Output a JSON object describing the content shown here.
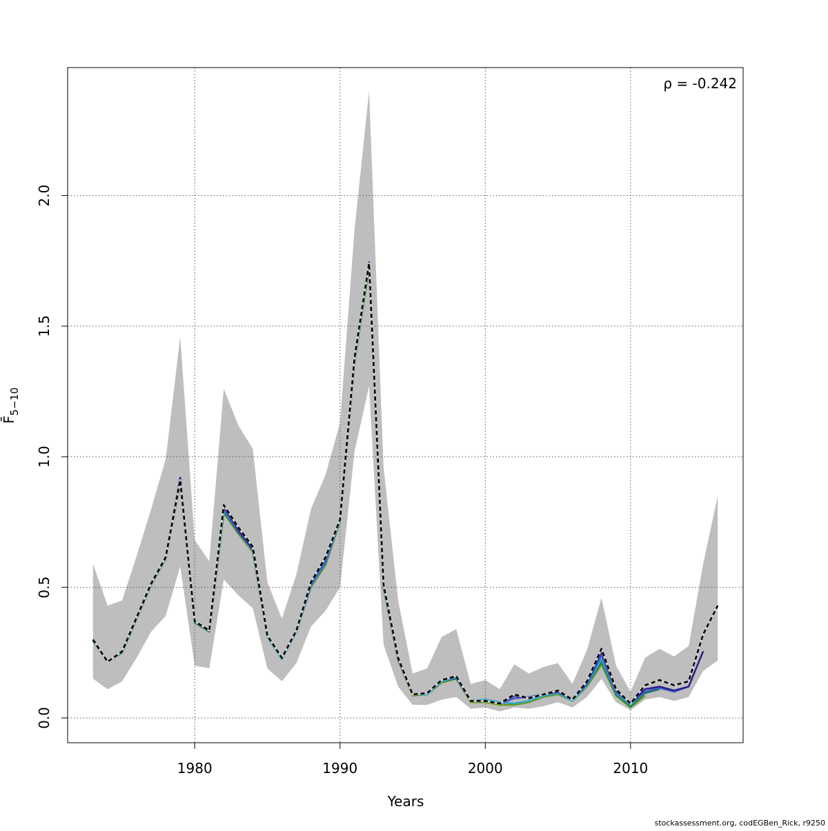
{
  "chart_data": {
    "type": "line",
    "title": "",
    "xlabel": "Years",
    "ylabel": "F̄",
    "ylabel_subscript": "5−10",
    "annotation": "ρ = -0.242",
    "footer": "stockassessment.org, codEGBen_Rick, r9250",
    "xlim": [
      1971.25,
      2017.75
    ],
    "ylim": [
      -0.095,
      2.49
    ],
    "xticks": [
      1980,
      1990,
      2000,
      2010
    ],
    "yticks": [
      0.0,
      0.5,
      1.0,
      1.5,
      2.0
    ],
    "grid": true,
    "legend": "none",
    "colors": {
      "ci_band": "#bebebe",
      "base": "#000000",
      "peels": [
        "#2a1d8a",
        "#3b5ccc",
        "#2fa8c8",
        "#1a7a4a",
        "#6a9a1e"
      ]
    },
    "years": [
      1973,
      1974,
      1975,
      1976,
      1977,
      1978,
      1979,
      1980,
      1981,
      1982,
      1983,
      1984,
      1985,
      1986,
      1987,
      1988,
      1989,
      1990,
      1991,
      1992,
      1993,
      1994,
      1995,
      1996,
      1997,
      1998,
      1999,
      2000,
      2001,
      2002,
      2003,
      2004,
      2005,
      2006,
      2007,
      2008,
      2009,
      2010,
      2011,
      2012,
      2013,
      2014,
      2015,
      2016
    ],
    "ci_lower": [
      0.15,
      0.11,
      0.14,
      0.23,
      0.33,
      0.39,
      0.58,
      0.2,
      0.19,
      0.53,
      0.47,
      0.42,
      0.19,
      0.14,
      0.21,
      0.35,
      0.41,
      0.5,
      1.02,
      1.27,
      0.28,
      0.12,
      0.05,
      0.05,
      0.07,
      0.08,
      0.035,
      0.04,
      0.025,
      0.04,
      0.035,
      0.045,
      0.06,
      0.04,
      0.08,
      0.15,
      0.06,
      0.03,
      0.07,
      0.08,
      0.065,
      0.08,
      0.18,
      0.22
    ],
    "ci_upper": [
      0.59,
      0.43,
      0.45,
      0.62,
      0.8,
      0.99,
      1.46,
      0.68,
      0.6,
      1.26,
      1.12,
      1.03,
      0.52,
      0.38,
      0.55,
      0.8,
      0.93,
      1.13,
      1.87,
      2.4,
      0.96,
      0.45,
      0.17,
      0.19,
      0.31,
      0.34,
      0.13,
      0.145,
      0.11,
      0.205,
      0.17,
      0.195,
      0.21,
      0.13,
      0.26,
      0.46,
      0.2,
      0.1,
      0.23,
      0.265,
      0.235,
      0.275,
      0.59,
      0.85
    ],
    "series": [
      {
        "x": [
          1973,
          1974,
          1975,
          1976,
          1977,
          1978,
          1979,
          1980,
          1981,
          1982,
          1983,
          1984,
          1985,
          1986,
          1987,
          1988,
          1989,
          1990,
          1991,
          1992,
          1993,
          1994,
          1995,
          1996,
          1997,
          1998,
          1999,
          2000,
          2001,
          2002,
          2003,
          2004,
          2005,
          2006,
          2007,
          2008,
          2009,
          2010,
          2011,
          2012,
          2013,
          2014,
          2015,
          2016
        ],
        "values": [
          0.3,
          0.215,
          0.255,
          0.385,
          0.515,
          0.615,
          0.91,
          0.37,
          0.335,
          0.815,
          0.73,
          0.655,
          0.315,
          0.23,
          0.335,
          0.52,
          0.615,
          0.76,
          1.38,
          1.74,
          0.51,
          0.23,
          0.09,
          0.095,
          0.145,
          0.16,
          0.065,
          0.065,
          0.055,
          0.09,
          0.075,
          0.09,
          0.105,
          0.07,
          0.14,
          0.265,
          0.11,
          0.055,
          0.125,
          0.145,
          0.125,
          0.14,
          0.32,
          0.43
        ],
        "color": "#000000",
        "dashed": true
      },
      {
        "x": [
          1973,
          1974,
          1975,
          1976,
          1977,
          1978,
          1979,
          1980,
          1981,
          1982,
          1983,
          1984,
          1985,
          1986,
          1987,
          1988,
          1989,
          1990,
          1991,
          1992,
          1993,
          1994,
          1995,
          1996,
          1997,
          1998,
          1999,
          2000,
          2001,
          2002,
          2003,
          2004,
          2005,
          2006,
          2007,
          2008,
          2009,
          2010,
          2011,
          2012,
          2013,
          2014,
          2015
        ],
        "values": [
          0.3,
          0.215,
          0.255,
          0.385,
          0.515,
          0.615,
          0.92,
          0.37,
          0.335,
          0.81,
          0.72,
          0.645,
          0.315,
          0.23,
          0.335,
          0.515,
          0.61,
          0.76,
          1.38,
          1.745,
          0.505,
          0.225,
          0.09,
          0.095,
          0.145,
          0.16,
          0.065,
          0.065,
          0.055,
          0.085,
          0.075,
          0.09,
          0.1,
          0.07,
          0.135,
          0.255,
          0.105,
          0.055,
          0.11,
          0.12,
          0.105,
          0.12,
          0.255
        ],
        "color": "#2a1d8a",
        "dashed": false
      },
      {
        "x": [
          1973,
          1974,
          1975,
          1976,
          1977,
          1978,
          1979,
          1980,
          1981,
          1982,
          1983,
          1984,
          1985,
          1986,
          1987,
          1988,
          1989,
          1990,
          1991,
          1992,
          1993,
          1994,
          1995,
          1996,
          1997,
          1998,
          1999,
          2000,
          2001,
          2002,
          2003,
          2004,
          2005,
          2006,
          2007,
          2008,
          2009,
          2010,
          2011,
          2012,
          2013,
          2014
        ],
        "values": [
          0.3,
          0.215,
          0.255,
          0.385,
          0.515,
          0.615,
          0.915,
          0.37,
          0.335,
          0.8,
          0.715,
          0.645,
          0.315,
          0.23,
          0.335,
          0.51,
          0.6,
          0.76,
          1.375,
          1.74,
          0.505,
          0.225,
          0.09,
          0.095,
          0.145,
          0.155,
          0.065,
          0.065,
          0.055,
          0.075,
          0.08,
          0.09,
          0.1,
          0.07,
          0.13,
          0.24,
          0.1,
          0.055,
          0.1,
          0.115,
          0.1,
          0.12
        ],
        "color": "#3b5ccc",
        "dashed": false
      },
      {
        "x": [
          1973,
          1974,
          1975,
          1976,
          1977,
          1978,
          1979,
          1980,
          1981,
          1982,
          1983,
          1984,
          1985,
          1986,
          1987,
          1988,
          1989,
          1990,
          1991,
          1992,
          1993,
          1994,
          1995,
          1996,
          1997,
          1998,
          1999,
          2000,
          2001,
          2002,
          2003,
          2004,
          2005,
          2006,
          2007,
          2008,
          2009,
          2010,
          2011,
          2012,
          2013
        ],
        "values": [
          0.3,
          0.215,
          0.255,
          0.385,
          0.515,
          0.615,
          0.91,
          0.37,
          0.335,
          0.795,
          0.715,
          0.64,
          0.31,
          0.225,
          0.33,
          0.505,
          0.595,
          0.755,
          1.37,
          1.735,
          0.5,
          0.225,
          0.09,
          0.09,
          0.14,
          0.155,
          0.065,
          0.07,
          0.06,
          0.055,
          0.065,
          0.085,
          0.095,
          0.065,
          0.125,
          0.225,
          0.095,
          0.05,
          0.1,
          0.115,
          0.1
        ],
        "color": "#2fa8c8",
        "dashed": false
      },
      {
        "x": [
          1973,
          1974,
          1975,
          1976,
          1977,
          1978,
          1979,
          1980,
          1981,
          1982,
          1983,
          1984,
          1985,
          1986,
          1987,
          1988,
          1989,
          1990,
          1991,
          1992,
          1993,
          1994,
          1995,
          1996,
          1997,
          1998,
          1999,
          2000,
          2001,
          2002,
          2003,
          2004,
          2005,
          2006,
          2007,
          2008,
          2009,
          2010,
          2011,
          2012
        ],
        "values": [
          0.295,
          0.215,
          0.25,
          0.38,
          0.51,
          0.61,
          0.905,
          0.365,
          0.33,
          0.79,
          0.71,
          0.64,
          0.31,
          0.225,
          0.33,
          0.505,
          0.59,
          0.755,
          1.37,
          1.73,
          0.5,
          0.225,
          0.09,
          0.09,
          0.14,
          0.15,
          0.065,
          0.07,
          0.06,
          0.055,
          0.065,
          0.085,
          0.095,
          0.065,
          0.125,
          0.215,
          0.09,
          0.045,
          0.095,
          0.11
        ],
        "color": "#1a7a4a",
        "dashed": false
      },
      {
        "x": [
          1973,
          1974,
          1975,
          1976,
          1977,
          1978,
          1979,
          1980,
          1981,
          1982,
          1983,
          1984,
          1985,
          1986,
          1987,
          1988,
          1989,
          1990,
          1991,
          1992,
          1993,
          1994,
          1995,
          1996,
          1997,
          1998,
          1999,
          2000,
          2001,
          2002,
          2003,
          2004,
          2005,
          2006,
          2007,
          2008,
          2009,
          2010,
          2011
        ],
        "values": [
          0.295,
          0.215,
          0.25,
          0.38,
          0.51,
          0.61,
          0.9,
          0.365,
          0.33,
          0.785,
          0.705,
          0.635,
          0.31,
          0.225,
          0.33,
          0.5,
          0.585,
          0.75,
          1.36,
          1.72,
          0.495,
          0.22,
          0.085,
          0.09,
          0.135,
          0.15,
          0.06,
          0.06,
          0.05,
          0.05,
          0.06,
          0.08,
          0.09,
          0.065,
          0.12,
          0.205,
          0.085,
          0.04,
          0.085
        ],
        "color": "#6a9a1e",
        "dashed": false
      }
    ]
  }
}
